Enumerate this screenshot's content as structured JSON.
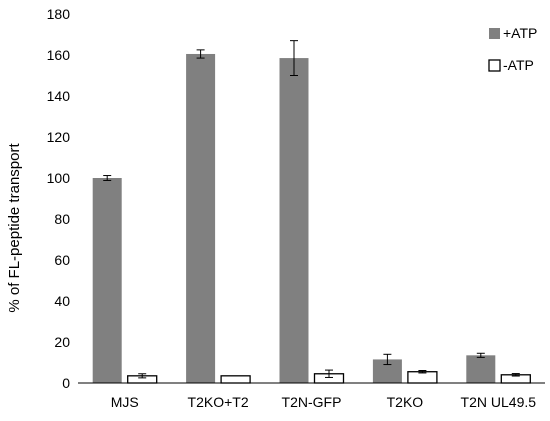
{
  "chart_data": {
    "type": "bar",
    "title": "",
    "xlabel": "",
    "ylabel": "% of FL-peptide transport",
    "ylim": [
      0,
      180
    ],
    "yticks": [
      0,
      20,
      40,
      60,
      80,
      100,
      120,
      140,
      160,
      180
    ],
    "grid": false,
    "legend_position": "top-right",
    "categories": [
      "MJS",
      "T2KO+T2",
      "T2N-GFP",
      "T2KO",
      "T2N UL49.5"
    ],
    "series": [
      {
        "name": "+ATP",
        "color": "#808080",
        "values": [
          100,
          160.5,
          158.5,
          11.5,
          13.5
        ],
        "errors": [
          1.2,
          2.0,
          8.5,
          2.5,
          1.0
        ]
      },
      {
        "name": "-ATP",
        "color": "#ffffff",
        "values": [
          3.5,
          3.5,
          4.5,
          5.5,
          4.0
        ],
        "errors": [
          1.0,
          0,
          1.8,
          0.6,
          0.6
        ]
      }
    ]
  }
}
